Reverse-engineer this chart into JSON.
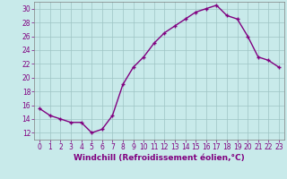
{
  "x": [
    0,
    1,
    2,
    3,
    4,
    5,
    6,
    7,
    8,
    9,
    10,
    11,
    12,
    13,
    14,
    15,
    16,
    17,
    18,
    19,
    20,
    21,
    22,
    23
  ],
  "y": [
    15.5,
    14.5,
    14.0,
    13.5,
    13.5,
    12.0,
    12.5,
    14.5,
    19.0,
    21.5,
    23.0,
    25.0,
    26.5,
    27.5,
    28.5,
    29.5,
    30.0,
    30.5,
    29.0,
    28.5,
    26.0,
    23.0,
    22.5,
    21.5
  ],
  "xlim": [
    -0.5,
    23.5
  ],
  "ylim": [
    11,
    31
  ],
  "yticks": [
    12,
    14,
    16,
    18,
    20,
    22,
    24,
    26,
    28,
    30
  ],
  "xticks": [
    0,
    1,
    2,
    3,
    4,
    5,
    6,
    7,
    8,
    9,
    10,
    11,
    12,
    13,
    14,
    15,
    16,
    17,
    18,
    19,
    20,
    21,
    22,
    23
  ],
  "xlabel": "Windchill (Refroidissement éolien,°C)",
  "line_color": "#800080",
  "marker_color": "#800080",
  "bg_color": "#c8eaea",
  "grid_color": "#9ec4c4",
  "axis_color": "#808080",
  "label_color": "#800080",
  "tick_color": "#800080",
  "tick_fontsize": 5.5,
  "xlabel_fontsize": 6.5,
  "linewidth": 1.0,
  "markersize": 3.5
}
